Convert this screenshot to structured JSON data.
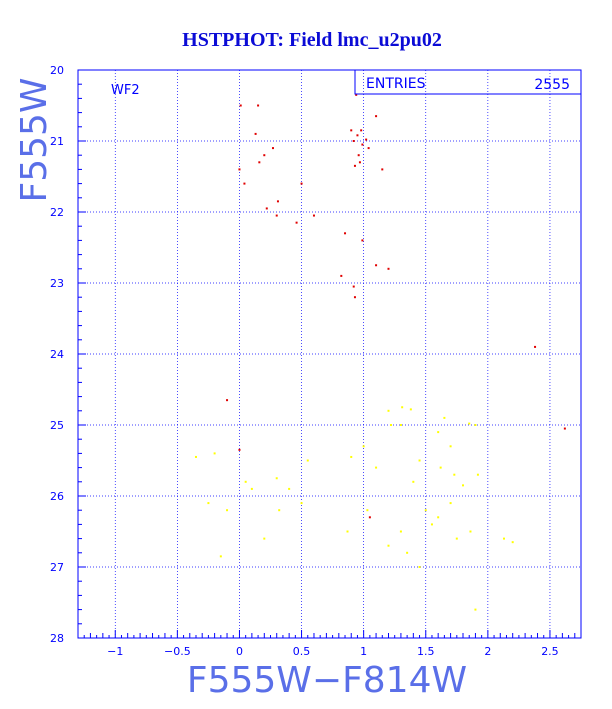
{
  "chart_data": {
    "type": "scatter",
    "title": "HSTPHOT: Field lmc_u2pu02",
    "xlabel": "F555W−F814W",
    "ylabel": "F555W",
    "panel_label": "WF2",
    "stats_label": "ENTRIES",
    "stats_value": "2555",
    "xlim": [
      -1.3,
      2.75
    ],
    "ylim": [
      28,
      20
    ],
    "y_inverted": true,
    "x_ticks": [
      "−1",
      "−0.5",
      "0",
      "0.5",
      "1",
      "1.5",
      "2",
      "2.5"
    ],
    "x_tick_values": [
      -1,
      -0.5,
      0,
      0.5,
      1,
      1.5,
      2,
      2.5
    ],
    "y_ticks": [
      "20",
      "21",
      "22",
      "23",
      "24",
      "25",
      "26",
      "27",
      "28"
    ],
    "y_tick_values": [
      20,
      21,
      22,
      23,
      24,
      25,
      26,
      27,
      28
    ],
    "grid": true,
    "colors": {
      "frame": "#0000ff",
      "grid": "#0000ff",
      "title": "#0b0bd6",
      "axis_label": "#5a6fe8",
      "series_main": "#e00000",
      "series_secondary": "#ffff00"
    },
    "series": [
      {
        "color": "#e00000",
        "points": [
          [
            0.01,
            20.5
          ],
          [
            0.15,
            20.5
          ],
          [
            0.13,
            20.9
          ],
          [
            0.27,
            21.1
          ],
          [
            0.2,
            21.2
          ],
          [
            0.16,
            21.3
          ],
          [
            0.0,
            21.4
          ],
          [
            0.04,
            21.6
          ],
          [
            0.31,
            21.85
          ],
          [
            0.22,
            21.95
          ],
          [
            0.5,
            21.6
          ],
          [
            0.46,
            22.15
          ],
          [
            0.6,
            22.05
          ],
          [
            0.3,
            22.05
          ],
          [
            0.9,
            20.85
          ],
          [
            0.95,
            20.92
          ],
          [
            0.98,
            20.85
          ],
          [
            0.92,
            21.0
          ],
          [
            0.96,
            21.2
          ],
          [
            0.99,
            21.05
          ],
          [
            1.04,
            21.1
          ],
          [
            0.93,
            21.35
          ],
          [
            0.97,
            21.3
          ],
          [
            1.1,
            20.65
          ],
          [
            1.02,
            20.98
          ],
          [
            0.94,
            20.35
          ],
          [
            1.15,
            21.4
          ],
          [
            0.85,
            22.3
          ],
          [
            0.82,
            22.9
          ],
          [
            0.99,
            22.4
          ],
          [
            1.1,
            22.75
          ],
          [
            1.2,
            22.8
          ],
          [
            0.92,
            23.05
          ],
          [
            0.93,
            23.2
          ],
          [
            2.38,
            23.9
          ],
          [
            2.62,
            25.05
          ],
          [
            -0.1,
            24.65
          ],
          [
            1.05,
            26.3
          ],
          [
            0.0,
            25.35
          ]
        ]
      },
      {
        "color": "#ffff00",
        "points": [
          [
            1.2,
            24.8
          ],
          [
            1.31,
            24.75
          ],
          [
            1.38,
            24.78
          ],
          [
            1.3,
            25.0
          ],
          [
            1.6,
            25.1
          ],
          [
            1.65,
            24.9
          ],
          [
            1.7,
            25.3
          ],
          [
            1.85,
            24.98
          ],
          [
            1.9,
            25.0
          ],
          [
            1.45,
            25.5
          ],
          [
            1.62,
            25.6
          ],
          [
            1.73,
            25.7
          ],
          [
            1.8,
            25.85
          ],
          [
            1.92,
            25.7
          ],
          [
            1.4,
            25.8
          ],
          [
            1.5,
            26.2
          ],
          [
            1.6,
            26.3
          ],
          [
            1.7,
            26.1
          ],
          [
            1.55,
            26.4
          ],
          [
            1.75,
            26.6
          ],
          [
            1.86,
            26.5
          ],
          [
            2.13,
            26.6
          ],
          [
            2.2,
            26.65
          ],
          [
            1.3,
            26.5
          ],
          [
            1.2,
            26.7
          ],
          [
            1.35,
            26.8
          ],
          [
            1.45,
            27.0
          ],
          [
            1.9,
            27.6
          ],
          [
            -0.35,
            25.45
          ],
          [
            -0.2,
            25.4
          ],
          [
            0.05,
            25.8
          ],
          [
            0.1,
            25.9
          ],
          [
            -0.25,
            26.1
          ],
          [
            -0.1,
            26.2
          ],
          [
            0.3,
            25.75
          ],
          [
            0.4,
            25.9
          ],
          [
            -0.15,
            26.85
          ],
          [
            0.2,
            26.6
          ],
          [
            0.32,
            26.2
          ],
          [
            0.5,
            26.1
          ],
          [
            0.55,
            25.5
          ],
          [
            0.9,
            25.45
          ],
          [
            1.0,
            25.3
          ],
          [
            1.1,
            25.6
          ],
          [
            1.22,
            25.0
          ],
          [
            1.03,
            26.2
          ],
          [
            0.87,
            26.5
          ]
        ]
      }
    ]
  }
}
